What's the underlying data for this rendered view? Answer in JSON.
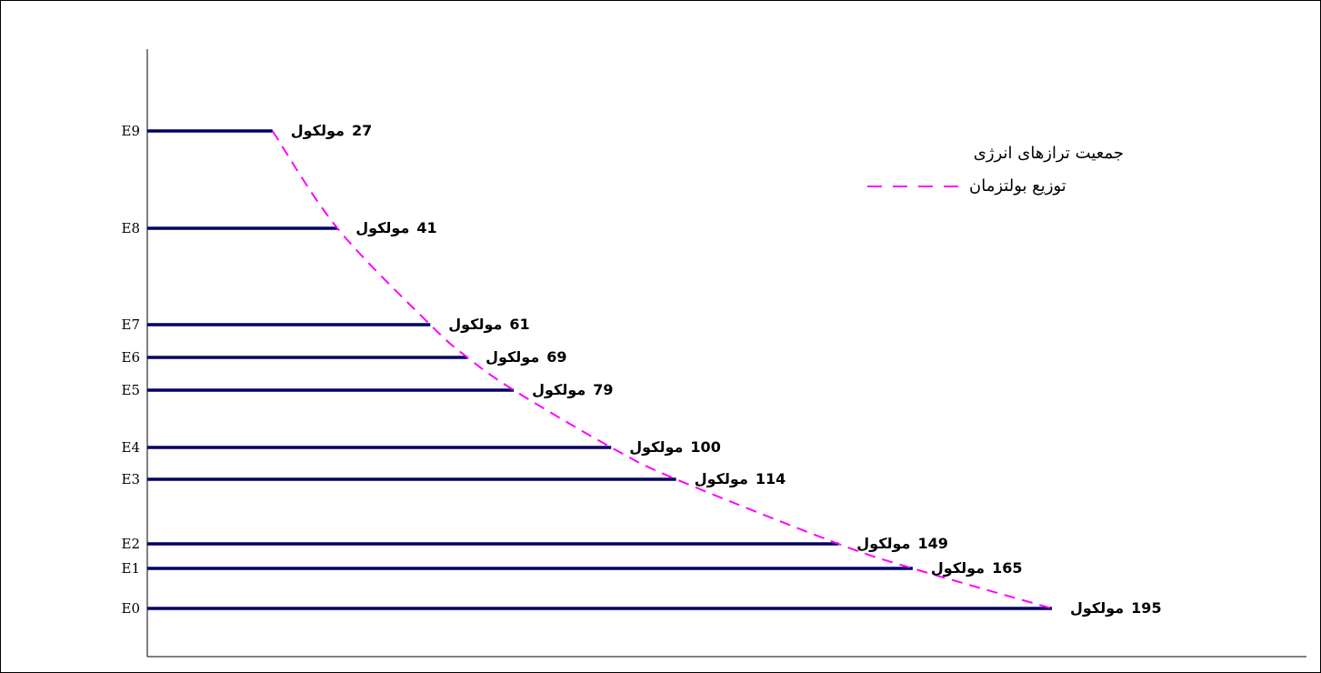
{
  "chart_data": {
    "type": "line",
    "unit": "مولکول",
    "levels": [
      {
        "label": "E0",
        "value": 195
      },
      {
        "label": "E1",
        "value": 165
      },
      {
        "label": "E2",
        "value": 149
      },
      {
        "label": "E3",
        "value": 114
      },
      {
        "label": "E4",
        "value": 100
      },
      {
        "label": "E5",
        "value": 79
      },
      {
        "label": "E6",
        "value": 69
      },
      {
        "label": "E7",
        "value": 61
      },
      {
        "label": "E8",
        "value": 41
      },
      {
        "label": "E9",
        "value": 27
      }
    ],
    "series": [
      {
        "name": "جمعیت ترازهای انرژی",
        "type": "bar",
        "color": "#000066"
      },
      {
        "name": "توزیع بولتزمان",
        "type": "dashed-line",
        "color": "#ff00ff"
      }
    ],
    "grid": false,
    "legend_position": "top-right"
  }
}
